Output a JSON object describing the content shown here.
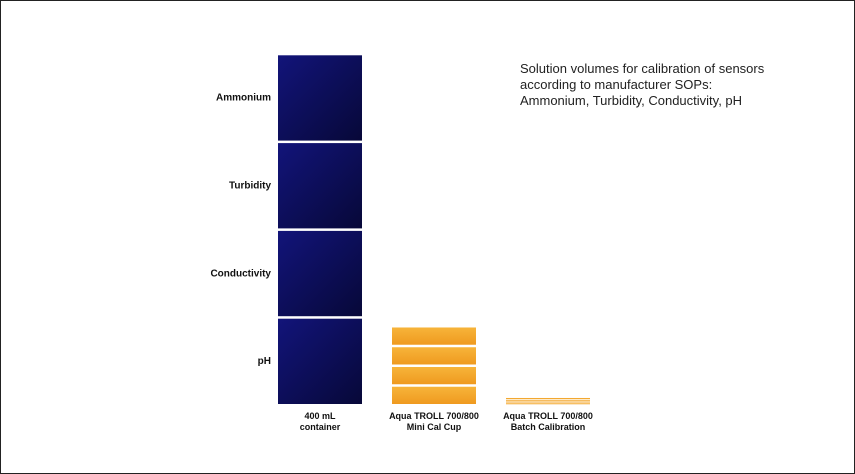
{
  "chart_data": {
    "type": "bar",
    "stacked": true,
    "categories": [
      "400 mL container",
      "Aqua TROLL 700/800 Mini Cal Cup",
      "Aqua TROLL 700/800 Batch Calibration"
    ],
    "category_labels": [
      [
        "400 mL",
        "container"
      ],
      [
        "Aqua TROLL 700/800",
        "Mini Cal Cup"
      ],
      [
        "Aqua TROLL 700/800",
        "Batch Calibration"
      ]
    ],
    "series": [
      {
        "name": "pH",
        "values": [
          400,
          90,
          8
        ]
      },
      {
        "name": "Conductivity",
        "values": [
          400,
          90,
          8
        ]
      },
      {
        "name": "Turbidity",
        "values": [
          400,
          90,
          8
        ]
      },
      {
        "name": "Ammonium",
        "values": [
          400,
          90,
          8
        ]
      }
    ],
    "series_colors": {
      "large": "#0d0f5e",
      "medium": "#f3a52a",
      "small": "#f3a52a"
    },
    "series_label_category": 0,
    "title": "",
    "xlabel": "",
    "ylabel": "",
    "axes_visible": false,
    "grid": false,
    "ylim": [
      0,
      1700
    ]
  },
  "note": {
    "lines": [
      "Solution volumes for calibration of sensors",
      "according to manufacturer SOPs:",
      "Ammonium, Turbidity, Conductivity, pH"
    ]
  }
}
